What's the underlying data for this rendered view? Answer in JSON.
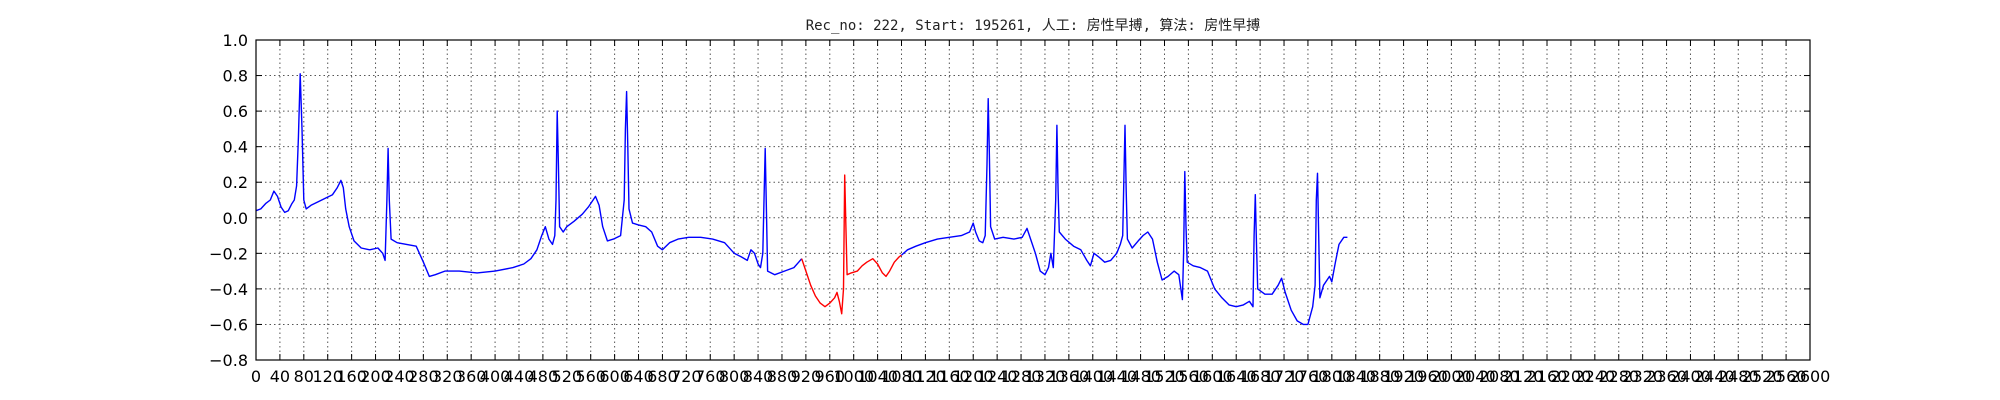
{
  "chart_data": {
    "type": "line",
    "title": "Rec_no: 222, Start: 195261, 人工: 房性早搏, 算法: 房性早搏",
    "xlabel": "",
    "ylabel": "",
    "xlim": [
      0,
      2600
    ],
    "ylim": [
      -0.8,
      1.0
    ],
    "grid": true,
    "y_ticks": [
      1.0,
      0.8,
      0.6,
      0.4,
      0.2,
      0.0,
      -0.2,
      -0.4,
      -0.6,
      -0.8
    ],
    "y_tick_labels": [
      "1.0",
      "0.8",
      "0.6",
      "0.4",
      "0.2",
      "0.0",
      "−0.2",
      "−0.4",
      "−0.6",
      "−0.8"
    ],
    "x_ticks": [
      0,
      40,
      80,
      120,
      160,
      200,
      240,
      280,
      320,
      360,
      400,
      440,
      480,
      520,
      560,
      600,
      640,
      680,
      720,
      760,
      800,
      840,
      880,
      920,
      960,
      1000,
      1040,
      1080,
      1120,
      1160,
      1200,
      1240,
      1280,
      1320,
      1360,
      1400,
      1440,
      1480,
      1520,
      1560,
      1600,
      1640,
      1680,
      1720,
      1760,
      1800,
      1840,
      1880,
      1920,
      1960,
      2000,
      2040,
      2080,
      2120,
      2160,
      2200,
      2240,
      2280,
      2320,
      2360,
      2400,
      2440,
      2480,
      2520,
      2560,
      2600
    ],
    "x_tick_labels": [
      "0",
      "40",
      "80",
      "120",
      "160",
      "200",
      "240",
      "280",
      "320",
      "360",
      "400",
      "440",
      "480",
      "520",
      "560",
      "600",
      "640",
      "680",
      "720",
      "760",
      "800",
      "840",
      "880",
      "920",
      "960",
      "1000",
      "1040",
      "1080",
      "1120",
      "1160",
      "1200",
      "1240",
      "1280",
      "1320",
      "1360",
      "1400",
      "1440",
      "1480",
      "1520",
      "1560",
      "1600",
      "1640",
      "1680",
      "1720",
      "1760",
      "1800",
      "1840",
      "1880",
      "1920",
      "1960",
      "2000",
      "2040",
      "2080",
      "2120",
      "2160",
      "2200",
      "2240",
      "2280",
      "2320",
      "2360",
      "2400",
      "2440",
      "2480",
      "2520",
      "2560",
      "2600"
    ],
    "x_tick_grid": [
      0,
      40,
      80,
      120,
      160,
      200,
      240,
      280,
      320,
      360,
      400,
      440,
      480,
      520,
      560,
      600,
      640,
      680,
      720,
      760,
      800,
      840,
      880,
      920,
      960,
      1000,
      1040,
      1080,
      1120,
      1160,
      1200,
      1240,
      1280,
      1320,
      1360,
      1400,
      1440,
      1480,
      1520,
      1560,
      1600,
      1640,
      1680,
      1720,
      1760,
      1800,
      1840,
      1880,
      1920,
      1960,
      2000,
      2040,
      2080,
      2120,
      2160,
      2200,
      2240,
      2280,
      2320,
      2360,
      2400,
      2440,
      2480,
      2520,
      2560,
      2600
    ],
    "series": [
      {
        "color": "#0000ff",
        "points": [
          [
            0,
            0.04
          ],
          [
            8,
            0.05
          ],
          [
            16,
            0.08
          ],
          [
            24,
            0.1
          ],
          [
            30,
            0.15
          ],
          [
            36,
            0.12
          ],
          [
            42,
            0.06
          ],
          [
            48,
            0.03
          ],
          [
            54,
            0.04
          ],
          [
            60,
            0.08
          ],
          [
            64,
            0.1
          ],
          [
            68,
            0.18
          ],
          [
            71,
            0.45
          ],
          [
            74,
            0.81
          ],
          [
            77,
            0.5
          ],
          [
            80,
            0.1
          ],
          [
            84,
            0.05
          ],
          [
            92,
            0.07
          ],
          [
            104,
            0.09
          ],
          [
            116,
            0.11
          ],
          [
            128,
            0.13
          ],
          [
            136,
            0.17
          ],
          [
            142,
            0.21
          ],
          [
            146,
            0.17
          ],
          [
            150,
            0.05
          ],
          [
            156,
            -0.05
          ],
          [
            164,
            -0.13
          ],
          [
            176,
            -0.17
          ],
          [
            190,
            -0.18
          ],
          [
            204,
            -0.17
          ],
          [
            212,
            -0.2
          ],
          [
            216,
            -0.24
          ],
          [
            219,
            0.1
          ],
          [
            221,
            0.39
          ],
          [
            223,
            0.1
          ],
          [
            226,
            -0.12
          ],
          [
            236,
            -0.14
          ],
          [
            252,
            -0.15
          ],
          [
            268,
            -0.16
          ],
          [
            280,
            -0.25
          ],
          [
            290,
            -0.33
          ],
          [
            300,
            -0.32
          ],
          [
            316,
            -0.3
          ],
          [
            340,
            -0.3
          ],
          [
            370,
            -0.31
          ],
          [
            400,
            -0.3
          ],
          [
            430,
            -0.28
          ],
          [
            448,
            -0.26
          ],
          [
            460,
            -0.23
          ],
          [
            470,
            -0.18
          ],
          [
            478,
            -0.1
          ],
          [
            484,
            -0.05
          ],
          [
            490,
            -0.12
          ],
          [
            496,
            -0.15
          ],
          [
            500,
            -0.1
          ],
          [
            502,
            0.1
          ],
          [
            504,
            0.6
          ],
          [
            506,
            0.3
          ],
          [
            508,
            -0.05
          ],
          [
            514,
            -0.08
          ],
          [
            520,
            -0.05
          ],
          [
            532,
            -0.02
          ],
          [
            546,
            0.02
          ],
          [
            556,
            0.06
          ],
          [
            564,
            0.1
          ],
          [
            568,
            0.12
          ],
          [
            574,
            0.07
          ],
          [
            580,
            -0.05
          ],
          [
            588,
            -0.13
          ],
          [
            598,
            -0.12
          ],
          [
            610,
            -0.1
          ],
          [
            616,
            0.1
          ],
          [
            618,
            0.5
          ],
          [
            620,
            0.71
          ],
          [
            622,
            0.4
          ],
          [
            624,
            0.05
          ],
          [
            630,
            -0.03
          ],
          [
            640,
            -0.04
          ],
          [
            652,
            -0.05
          ],
          [
            662,
            -0.08
          ],
          [
            672,
            -0.16
          ],
          [
            680,
            -0.18
          ],
          [
            692,
            -0.14
          ],
          [
            706,
            -0.12
          ],
          [
            724,
            -0.11
          ],
          [
            744,
            -0.11
          ],
          [
            764,
            -0.12
          ],
          [
            784,
            -0.14
          ],
          [
            800,
            -0.2
          ],
          [
            812,
            -0.22
          ],
          [
            822,
            -0.24
          ],
          [
            828,
            -0.18
          ],
          [
            834,
            -0.2
          ],
          [
            840,
            -0.26
          ],
          [
            844,
            -0.28
          ],
          [
            848,
            -0.2
          ],
          [
            850,
            0.1
          ],
          [
            852,
            0.39
          ],
          [
            854,
            0.05
          ],
          [
            856,
            -0.3
          ],
          [
            868,
            -0.32
          ],
          [
            884,
            -0.3
          ],
          [
            900,
            -0.28
          ],
          [
            908,
            -0.25
          ],
          [
            913,
            -0.23
          ]
        ]
      },
      {
        "color": "#ff0000",
        "points": [
          [
            913,
            -0.23
          ],
          [
            920,
            -0.3
          ],
          [
            928,
            -0.38
          ],
          [
            936,
            -0.44
          ],
          [
            944,
            -0.48
          ],
          [
            952,
            -0.5
          ],
          [
            960,
            -0.48
          ],
          [
            968,
            -0.45
          ],
          [
            972,
            -0.42
          ],
          [
            976,
            -0.47
          ],
          [
            980,
            -0.54
          ],
          [
            983,
            -0.4
          ],
          [
            985,
            0.24
          ],
          [
            987,
            -0.05
          ],
          [
            989,
            -0.32
          ],
          [
            996,
            -0.31
          ],
          [
            1006,
            -0.3
          ],
          [
            1014,
            -0.27
          ],
          [
            1022,
            -0.25
          ],
          [
            1032,
            -0.23
          ],
          [
            1040,
            -0.26
          ],
          [
            1048,
            -0.31
          ],
          [
            1054,
            -0.33
          ],
          [
            1060,
            -0.3
          ],
          [
            1068,
            -0.25
          ],
          [
            1076,
            -0.22
          ],
          [
            1080,
            -0.21
          ]
        ]
      },
      {
        "color": "#0000ff",
        "points": [
          [
            1080,
            -0.21
          ],
          [
            1090,
            -0.18
          ],
          [
            1104,
            -0.16
          ],
          [
            1120,
            -0.14
          ],
          [
            1140,
            -0.12
          ],
          [
            1160,
            -0.11
          ],
          [
            1180,
            -0.1
          ],
          [
            1194,
            -0.08
          ],
          [
            1200,
            -0.03
          ],
          [
            1204,
            -0.08
          ],
          [
            1210,
            -0.13
          ],
          [
            1216,
            -0.14
          ],
          [
            1220,
            -0.1
          ],
          [
            1223,
            0.3
          ],
          [
            1225,
            0.67
          ],
          [
            1227,
            0.35
          ],
          [
            1229,
            -0.05
          ],
          [
            1236,
            -0.12
          ],
          [
            1250,
            -0.11
          ],
          [
            1268,
            -0.12
          ],
          [
            1282,
            -0.11
          ],
          [
            1290,
            -0.06
          ],
          [
            1296,
            -0.12
          ],
          [
            1304,
            -0.2
          ],
          [
            1312,
            -0.3
          ],
          [
            1320,
            -0.32
          ],
          [
            1326,
            -0.28
          ],
          [
            1330,
            -0.2
          ],
          [
            1334,
            -0.28
          ],
          [
            1338,
            0.1
          ],
          [
            1340,
            0.52
          ],
          [
            1342,
            0.15
          ],
          [
            1344,
            -0.08
          ],
          [
            1354,
            -0.12
          ],
          [
            1368,
            -0.16
          ],
          [
            1380,
            -0.18
          ],
          [
            1390,
            -0.24
          ],
          [
            1396,
            -0.27
          ],
          [
            1402,
            -0.2
          ],
          [
            1410,
            -0.22
          ],
          [
            1420,
            -0.25
          ],
          [
            1430,
            -0.24
          ],
          [
            1440,
            -0.2
          ],
          [
            1446,
            -0.15
          ],
          [
            1450,
            -0.1
          ],
          [
            1452,
            0.2
          ],
          [
            1454,
            0.52
          ],
          [
            1456,
            0.15
          ],
          [
            1458,
            -0.12
          ],
          [
            1466,
            -0.17
          ],
          [
            1476,
            -0.13
          ],
          [
            1484,
            -0.1
          ],
          [
            1492,
            -0.08
          ],
          [
            1500,
            -0.12
          ],
          [
            1508,
            -0.25
          ],
          [
            1516,
            -0.35
          ],
          [
            1526,
            -0.33
          ],
          [
            1536,
            -0.3
          ],
          [
            1544,
            -0.32
          ],
          [
            1550,
            -0.46
          ],
          [
            1552,
            -0.2
          ],
          [
            1554,
            0.26
          ],
          [
            1556,
            -0.05
          ],
          [
            1558,
            -0.25
          ],
          [
            1568,
            -0.27
          ],
          [
            1580,
            -0.28
          ],
          [
            1592,
            -0.3
          ],
          [
            1604,
            -0.4
          ],
          [
            1616,
            -0.45
          ],
          [
            1628,
            -0.49
          ],
          [
            1640,
            -0.5
          ],
          [
            1652,
            -0.49
          ],
          [
            1662,
            -0.47
          ],
          [
            1668,
            -0.5
          ],
          [
            1670,
            -0.1
          ],
          [
            1672,
            0.13
          ],
          [
            1674,
            -0.15
          ],
          [
            1676,
            -0.4
          ],
          [
            1688,
            -0.43
          ],
          [
            1700,
            -0.43
          ],
          [
            1710,
            -0.38
          ],
          [
            1716,
            -0.34
          ],
          [
            1722,
            -0.42
          ],
          [
            1732,
            -0.52
          ],
          [
            1742,
            -0.58
          ],
          [
            1752,
            -0.6
          ],
          [
            1760,
            -0.6
          ],
          [
            1768,
            -0.5
          ],
          [
            1772,
            -0.38
          ],
          [
            1774,
            0.1
          ],
          [
            1776,
            0.25
          ],
          [
            1778,
            -0.1
          ],
          [
            1780,
            -0.45
          ],
          [
            1786,
            -0.38
          ],
          [
            1796,
            -0.33
          ],
          [
            1800,
            -0.36
          ],
          [
            1806,
            -0.25
          ],
          [
            1812,
            -0.15
          ],
          [
            1820,
            -0.11
          ],
          [
            1826,
            -0.11
          ]
        ]
      }
    ]
  }
}
